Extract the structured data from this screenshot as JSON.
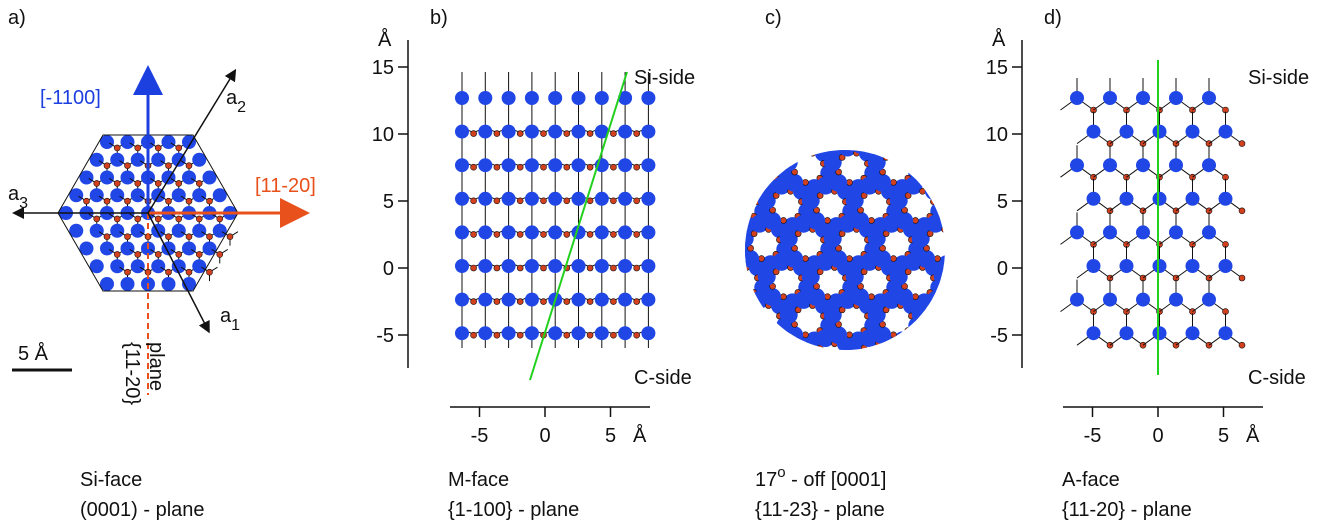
{
  "panels": [
    {
      "label": "a)",
      "arrow_up": "[-1100]",
      "arrow_right": "[11-20]",
      "axes": [
        {
          "name": "a",
          "sub": "1"
        },
        {
          "name": "a",
          "sub": "2"
        },
        {
          "name": "a",
          "sub": "3"
        }
      ],
      "plane": [
        "{11-20}",
        "plane"
      ],
      "scale": "5 Å",
      "caption": [
        "Si-face",
        "(0001)  - plane"
      ]
    },
    {
      "label": "b)",
      "y_unit": "Å",
      "x_unit": "Å",
      "yticks": [
        15,
        10,
        5,
        0,
        -5
      ],
      "xticks": [
        -5,
        0,
        5
      ],
      "top": "Si-side",
      "bottom": "C-side",
      "caption": [
        "M-face",
        "{1-100} - plane"
      ]
    },
    {
      "label": "c)",
      "caption_line1": [
        "17",
        "o",
        " - off [0001]"
      ],
      "caption_line2": "{11-23} - plane"
    },
    {
      "label": "d)",
      "y_unit": "Å",
      "x_unit": "Å",
      "yticks": [
        15,
        10,
        5,
        0,
        -5
      ],
      "xticks": [
        -5,
        0,
        5
      ],
      "top": "Si-side",
      "bottom": "C-side",
      "caption": [
        "A-face",
        "{11-20} - plane"
      ]
    }
  ]
}
